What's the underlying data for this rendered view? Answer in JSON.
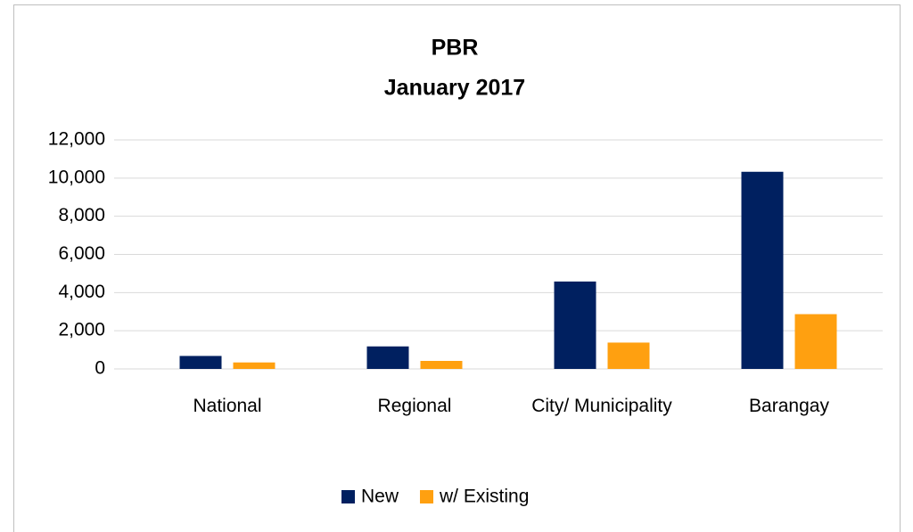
{
  "chart_data": {
    "type": "bar",
    "title": "PBR",
    "subtitle": "January 2017",
    "categories": [
      "National",
      "Regional",
      "City/ Municipality",
      "Barangay"
    ],
    "series": [
      {
        "name": "New",
        "color": "#002060",
        "values": [
          680,
          1180,
          4580,
          10330
        ]
      },
      {
        "name": "w/ Existing",
        "color": "#ffa010",
        "values": [
          340,
          420,
          1380,
          2870
        ]
      }
    ],
    "ylim": [
      0,
      12000
    ],
    "yticks": [
      0,
      {
        "value": 2000,
        "label": "2,000"
      },
      {
        "value": 4000,
        "label": "4,000"
      },
      {
        "value": 6000,
        "label": "6,000"
      },
      {
        "value": 8000,
        "label": "8,000"
      },
      {
        "value": 10000,
        "label": "10,000"
      },
      {
        "value": 12000,
        "label": "12,000"
      }
    ],
    "grid": true,
    "legend": "bottom"
  }
}
